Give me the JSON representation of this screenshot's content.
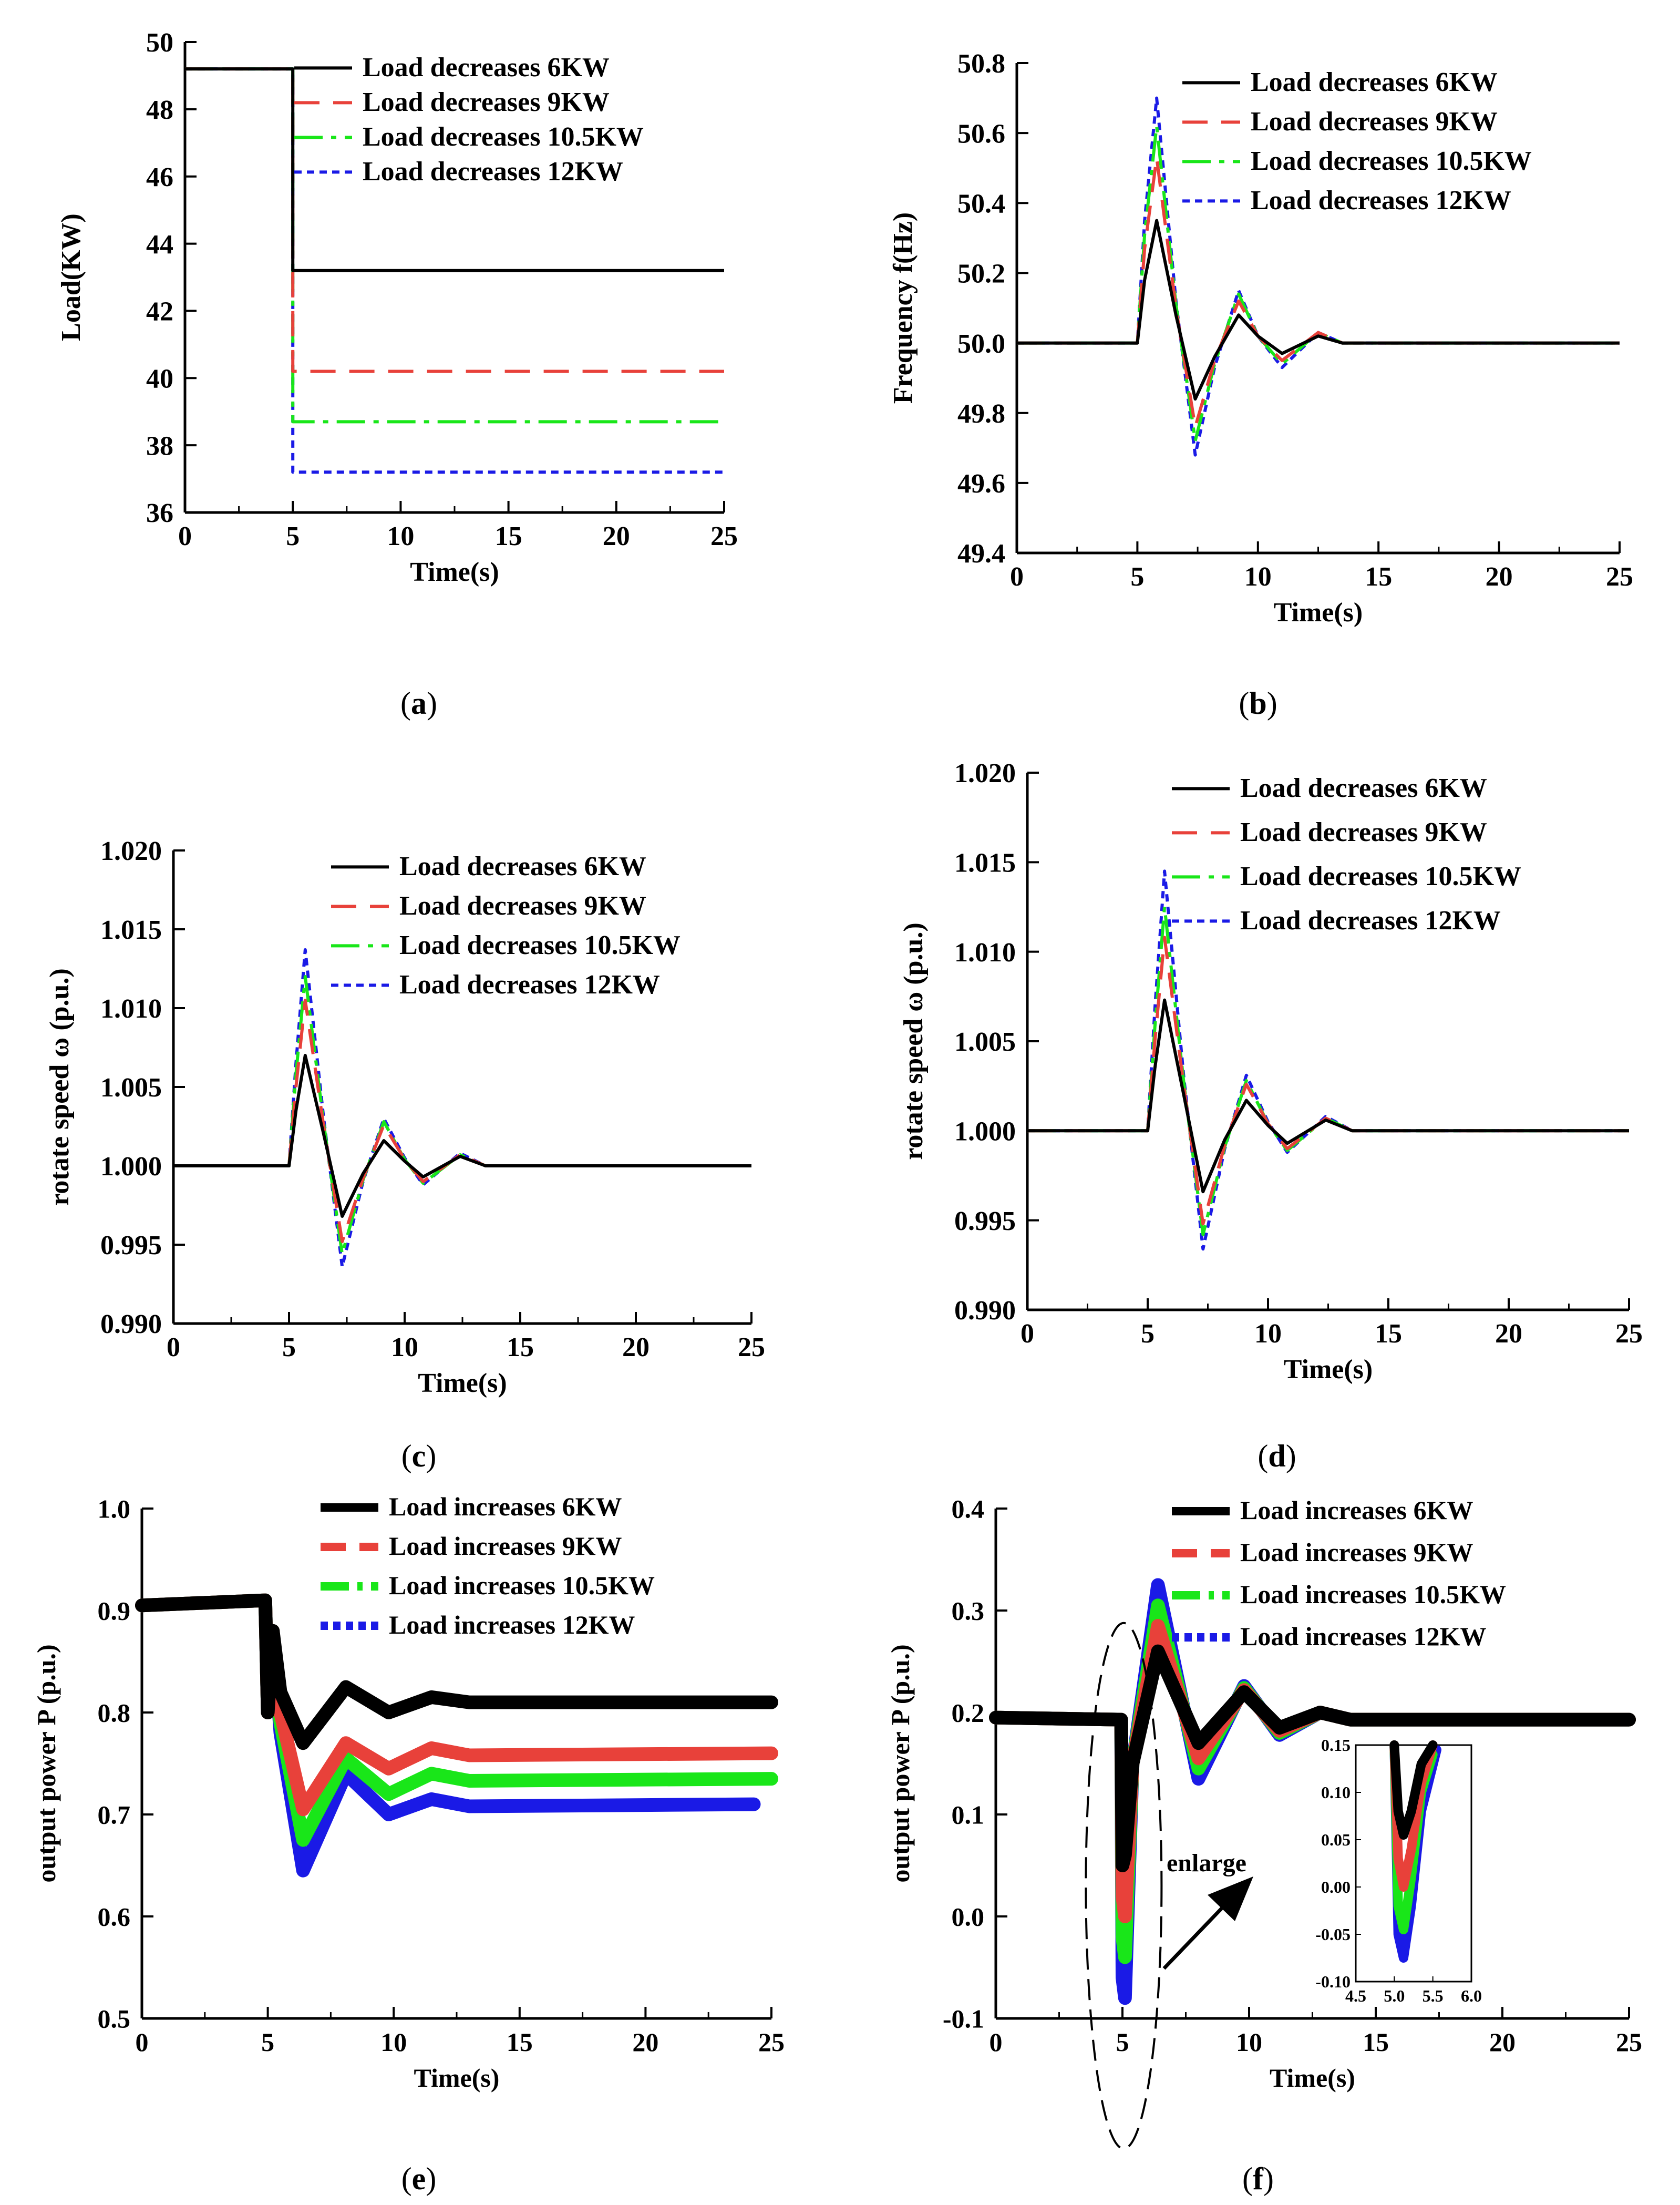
{
  "colors": {
    "black": "#000000",
    "red": "#e8413a",
    "green": "#19e619",
    "blue": "#1a1ae6",
    "axis": "#000000"
  },
  "chart_data": [
    {
      "id": "a",
      "type": "line",
      "caption": "a",
      "xlabel": "Time(s)",
      "ylabel": "Load(KW)",
      "xlim": [
        0,
        25
      ],
      "ylim": [
        36,
        50
      ],
      "xticks": [
        "0",
        "5",
        "10",
        "15",
        "20",
        "25"
      ],
      "yticks": [
        "36",
        "38",
        "40",
        "42",
        "44",
        "46",
        "48",
        "50"
      ],
      "legend": "top-right",
      "series": [
        {
          "name": "Load decreases 6KW",
          "x": [
            0,
            5,
            5,
            25
          ],
          "y": [
            49.2,
            49.2,
            43.2,
            43.2
          ]
        },
        {
          "name": "Load decreases 9KW",
          "x": [
            0,
            5,
            5,
            25
          ],
          "y": [
            49.2,
            49.2,
            40.2,
            40.2
          ]
        },
        {
          "name": "Load decreases 10.5KW",
          "x": [
            0,
            5,
            5,
            25
          ],
          "y": [
            49.2,
            49.2,
            38.7,
            38.7
          ]
        },
        {
          "name": "Load decreases 12KW",
          "x": [
            0,
            5,
            5,
            25
          ],
          "y": [
            49.2,
            49.2,
            37.2,
            37.2
          ]
        }
      ]
    },
    {
      "id": "b",
      "type": "line",
      "caption": "b",
      "xlabel": "Time(s)",
      "ylabel": "Frequency f(Hz)",
      "xlim": [
        0,
        25
      ],
      "ylim": [
        49.4,
        50.8
      ],
      "xticks": [
        "0",
        "5",
        "10",
        "15",
        "20",
        "25"
      ],
      "yticks": [
        "49.4",
        "49.6",
        "49.8",
        "50.0",
        "50.2",
        "50.4",
        "50.6",
        "50.8"
      ],
      "legend": "top-right",
      "series": [
        {
          "name": "Load decreases 6KW",
          "x": [
            0,
            5,
            5.3,
            5.8,
            6.6,
            7.4,
            8.2,
            9.2,
            10.0,
            11.0,
            12.5,
            13.5,
            15,
            25
          ],
          "y": [
            50,
            50,
            50.18,
            50.35,
            50.08,
            49.84,
            49.96,
            50.08,
            50.02,
            49.97,
            50.02,
            50.0,
            50.0,
            50.0
          ]
        },
        {
          "name": "Load decreases 9KW",
          "x": [
            0,
            5,
            5.3,
            5.8,
            6.6,
            7.4,
            8.2,
            9.2,
            10.0,
            11.0,
            12.5,
            13.5,
            15,
            25
          ],
          "y": [
            50,
            50,
            50.27,
            50.53,
            50.1,
            49.76,
            49.95,
            50.12,
            50.02,
            49.95,
            50.03,
            50.0,
            50.0,
            50.0
          ]
        },
        {
          "name": "Load decreases 10.5KW",
          "x": [
            0,
            5,
            5.3,
            5.8,
            6.6,
            7.4,
            8.2,
            9.2,
            10.0,
            11.0,
            12.5,
            13.5,
            15,
            25
          ],
          "y": [
            50,
            50,
            50.31,
            50.62,
            50.11,
            49.72,
            49.94,
            50.14,
            50.02,
            49.94,
            50.03,
            50.0,
            50.0,
            50.0
          ]
        },
        {
          "name": "Load decreases 12KW",
          "x": [
            0,
            5,
            5.3,
            5.8,
            6.6,
            7.4,
            8.2,
            9.2,
            10.0,
            11.0,
            12.5,
            13.5,
            15,
            25
          ],
          "y": [
            50,
            50,
            50.35,
            50.7,
            50.12,
            49.68,
            49.93,
            50.15,
            50.02,
            49.93,
            50.03,
            50.0,
            50.0,
            50.0
          ]
        }
      ]
    },
    {
      "id": "c",
      "type": "line",
      "caption": "c",
      "xlabel": "Time(s)",
      "ylabel": "rotate speed ω (p.u.)",
      "xlim": [
        0,
        25
      ],
      "ylim": [
        0.99,
        1.02
      ],
      "xticks": [
        "0",
        "5",
        "10",
        "15",
        "20",
        "25"
      ],
      "yticks": [
        "0.990",
        "0.995",
        "1.000",
        "1.005",
        "1.010",
        "1.015",
        "1.020"
      ],
      "legend": "top-right",
      "series": [
        {
          "name": "Load decreases 6KW",
          "x": [
            0,
            5,
            5.3,
            5.7,
            6.5,
            7.3,
            8.2,
            9.1,
            10.0,
            10.8,
            12.4,
            13.5,
            15,
            25
          ],
          "y": [
            1,
            1,
            1.0035,
            1.007,
            1.002,
            0.9968,
            0.9995,
            1.0016,
            1.0003,
            0.9993,
            1.0006,
            1.0,
            1.0,
            1.0
          ]
        },
        {
          "name": "Load decreases 9KW",
          "x": [
            0,
            5,
            5.3,
            5.7,
            6.5,
            7.3,
            8.2,
            9.1,
            10.0,
            10.8,
            12.4,
            13.5,
            15,
            25
          ],
          "y": [
            1,
            1,
            1.005,
            1.0105,
            1.0025,
            0.9952,
            0.9992,
            1.0026,
            1.0004,
            0.999,
            1.0007,
            1.0,
            1.0,
            1.0
          ]
        },
        {
          "name": "Load decreases 10.5KW",
          "x": [
            0,
            5,
            5.3,
            5.7,
            6.5,
            7.3,
            8.2,
            9.1,
            10.0,
            10.8,
            12.4,
            13.5,
            15,
            25
          ],
          "y": [
            1,
            1,
            1.0058,
            1.012,
            1.0027,
            0.9944,
            0.9991,
            1.0028,
            1.0004,
            0.9989,
            1.0007,
            1.0,
            1.0,
            1.0
          ]
        },
        {
          "name": "Load decreases 12KW",
          "x": [
            0,
            5,
            5.3,
            5.7,
            6.5,
            7.3,
            8.2,
            9.1,
            10.0,
            10.8,
            12.4,
            13.5,
            15,
            25
          ],
          "y": [
            1,
            1,
            1.0065,
            1.0137,
            1.003,
            0.9936,
            0.999,
            1.003,
            1.0005,
            0.9988,
            1.0008,
            1.0,
            1.0,
            1.0
          ]
        }
      ]
    },
    {
      "id": "d",
      "type": "line",
      "caption": "d",
      "xlabel": "Time(s)",
      "ylabel": "rotate speed ω (p.u.)",
      "xlim": [
        0,
        25
      ],
      "ylim": [
        0.99,
        1.02
      ],
      "xticks": [
        "0",
        "5",
        "10",
        "15",
        "20",
        "25"
      ],
      "yticks": [
        "0.990",
        "0.995",
        "1.000",
        "1.005",
        "1.010",
        "1.015",
        "1.020"
      ],
      "legend": "top-right",
      "series": [
        {
          "name": "Load decreases 6KW",
          "x": [
            0,
            5,
            5.3,
            5.7,
            6.5,
            7.3,
            8.2,
            9.1,
            10.0,
            10.8,
            12.4,
            13.5,
            15,
            25
          ],
          "y": [
            1,
            1,
            1.0035,
            1.0073,
            1.002,
            0.9966,
            0.9995,
            1.0017,
            1.0003,
            0.9993,
            1.0006,
            1.0,
            1.0,
            1.0
          ]
        },
        {
          "name": "Load decreases 9KW",
          "x": [
            0,
            5,
            5.3,
            5.7,
            6.5,
            7.3,
            8.2,
            9.1,
            10.0,
            10.8,
            12.4,
            13.5,
            15,
            25
          ],
          "y": [
            1,
            1,
            1.005,
            1.0108,
            1.0025,
            0.9948,
            0.9992,
            1.0026,
            1.0004,
            0.999,
            1.0007,
            1.0,
            1.0,
            1.0
          ]
        },
        {
          "name": "Load decreases 10.5KW",
          "x": [
            0,
            5,
            5.3,
            5.7,
            6.5,
            7.3,
            8.2,
            9.1,
            10.0,
            10.8,
            12.4,
            13.5,
            15,
            25
          ],
          "y": [
            1,
            1,
            1.0058,
            1.0125,
            1.0027,
            0.9942,
            0.9991,
            1.0028,
            1.0004,
            0.9989,
            1.0007,
            1.0,
            1.0,
            1.0
          ]
        },
        {
          "name": "Load decreases 12KW",
          "x": [
            0,
            5,
            5.3,
            5.7,
            6.5,
            7.3,
            8.2,
            9.1,
            10.0,
            10.8,
            12.4,
            13.5,
            15,
            25
          ],
          "y": [
            1,
            1,
            1.0068,
            1.0145,
            1.003,
            0.9934,
            0.999,
            1.0031,
            1.0005,
            0.9988,
            1.0008,
            1.0,
            1.0,
            1.0
          ]
        }
      ]
    },
    {
      "id": "e",
      "type": "line",
      "caption": "e",
      "xlabel": "Time(s)",
      "ylabel": "output power P (p.u.)",
      "xlim": [
        0,
        25
      ],
      "ylim": [
        0.5,
        1.0
      ],
      "xticks": [
        "0",
        "5",
        "10",
        "15",
        "20",
        "25"
      ],
      "yticks": [
        "0.5",
        "0.6",
        "0.7",
        "0.8",
        "0.9",
        "1.0"
      ],
      "legend": "top-right",
      "series": [
        {
          "name": "Load increases 6KW",
          "x": [
            0,
            4.9,
            5.0,
            5.2,
            5.5,
            6.4,
            8.1,
            9.8,
            11.5,
            13.0,
            25
          ],
          "y": [
            0.905,
            0.91,
            0.8,
            0.88,
            0.82,
            0.77,
            0.825,
            0.8,
            0.815,
            0.81,
            0.81
          ]
        },
        {
          "name": "Load increases 9KW",
          "x": [
            0,
            4.9,
            5.0,
            5.2,
            5.5,
            6.4,
            8.1,
            9.8,
            11.5,
            13.0,
            25
          ],
          "y": [
            0.905,
            0.91,
            0.8,
            0.88,
            0.8,
            0.705,
            0.77,
            0.745,
            0.765,
            0.758,
            0.76
          ]
        },
        {
          "name": "Load increases 10.5KW",
          "x": [
            0,
            4.9,
            5.0,
            5.2,
            5.5,
            6.4,
            8.1,
            9.8,
            11.5,
            13.0,
            25
          ],
          "y": [
            0.905,
            0.91,
            0.8,
            0.88,
            0.79,
            0.675,
            0.755,
            0.72,
            0.74,
            0.733,
            0.735
          ]
        },
        {
          "name": "Load increases 12KW",
          "x": [
            0,
            4.9,
            5.0,
            5.2,
            5.5,
            6.4,
            8.1,
            9.8,
            11.5,
            13.0,
            24.3
          ],
          "y": [
            0.905,
            0.91,
            0.8,
            0.88,
            0.78,
            0.645,
            0.74,
            0.7,
            0.715,
            0.708,
            0.71
          ]
        }
      ]
    },
    {
      "id": "f",
      "type": "line",
      "caption": "f",
      "xlabel": "Time(s)",
      "ylabel": "output power P (p.u.)",
      "xlim": [
        0,
        25
      ],
      "ylim": [
        -0.1,
        0.4
      ],
      "xticks": [
        "0",
        "5",
        "10",
        "15",
        "20",
        "25"
      ],
      "yticks": [
        "-0.1",
        "0.0",
        "0.1",
        "0.2",
        "0.3",
        "0.4"
      ],
      "legend": "top-right",
      "annotation": "enlarge",
      "series": [
        {
          "name": "Load increases 6KW",
          "x": [
            0,
            4.95,
            5.0,
            5.1,
            5.4,
            6.4,
            8.0,
            9.8,
            11.2,
            12.8,
            14.0,
            25
          ],
          "y": [
            0.195,
            0.193,
            0.05,
            0.06,
            0.15,
            0.26,
            0.17,
            0.22,
            0.185,
            0.2,
            0.193,
            0.193
          ]
        },
        {
          "name": "Load increases 9KW",
          "x": [
            0,
            4.95,
            5.0,
            5.1,
            5.4,
            6.4,
            8.0,
            9.8,
            11.2,
            12.8,
            14.0,
            25
          ],
          "y": [
            0.195,
            0.193,
            0.02,
            0.0,
            0.15,
            0.285,
            0.155,
            0.222,
            0.182,
            0.2,
            0.193,
            0.193
          ]
        },
        {
          "name": "Load increases 10.5KW",
          "x": [
            0,
            4.95,
            5.0,
            5.1,
            5.4,
            6.4,
            8.0,
            9.8,
            11.2,
            12.8,
            14.0,
            25
          ],
          "y": [
            0.195,
            0.193,
            -0.02,
            -0.04,
            0.15,
            0.305,
            0.145,
            0.224,
            0.18,
            0.2,
            0.193,
            0.193
          ]
        },
        {
          "name": "Load increases 12KW",
          "x": [
            0,
            4.95,
            5.0,
            5.1,
            5.4,
            6.4,
            8.0,
            9.8,
            11.2,
            12.8,
            14.0,
            25
          ],
          "y": [
            0.195,
            0.193,
            -0.06,
            -0.08,
            0.15,
            0.325,
            0.135,
            0.226,
            0.178,
            0.2,
            0.193,
            0.193
          ]
        }
      ],
      "inset": {
        "xlim": [
          4.5,
          6.0
        ],
        "ylim": [
          -0.1,
          0.15
        ],
        "xticks": [
          "4.5",
          "5.0",
          "5.5",
          "6.0"
        ],
        "yticks": [
          "-0.10",
          "-0.05",
          "0.00",
          "0.05",
          "0.10",
          "0.15"
        ],
        "series": [
          {
            "name": "Load increases 6KW",
            "x": [
              5.0,
              5.05,
              5.12,
              5.22,
              5.35,
              5.5
            ],
            "y": [
              0.15,
              0.08,
              0.055,
              0.08,
              0.13,
              0.15
            ]
          },
          {
            "name": "Load increases 9KW",
            "x": [
              5.0,
              5.05,
              5.12,
              5.22,
              5.35,
              5.5
            ],
            "y": [
              0.15,
              0.03,
              0.0,
              0.04,
              0.11,
              0.15
            ]
          },
          {
            "name": "Load increases 10.5KW",
            "x": [
              5.0,
              5.05,
              5.12,
              5.22,
              5.35,
              5.5
            ],
            "y": [
              0.15,
              -0.02,
              -0.045,
              0.01,
              0.1,
              0.14
            ]
          },
          {
            "name": "Load increases 12KW",
            "x": [
              5.0,
              5.05,
              5.12,
              5.22,
              5.35,
              5.55
            ],
            "y": [
              0.15,
              -0.05,
              -0.075,
              -0.02,
              0.08,
              0.145
            ]
          }
        ]
      }
    }
  ]
}
